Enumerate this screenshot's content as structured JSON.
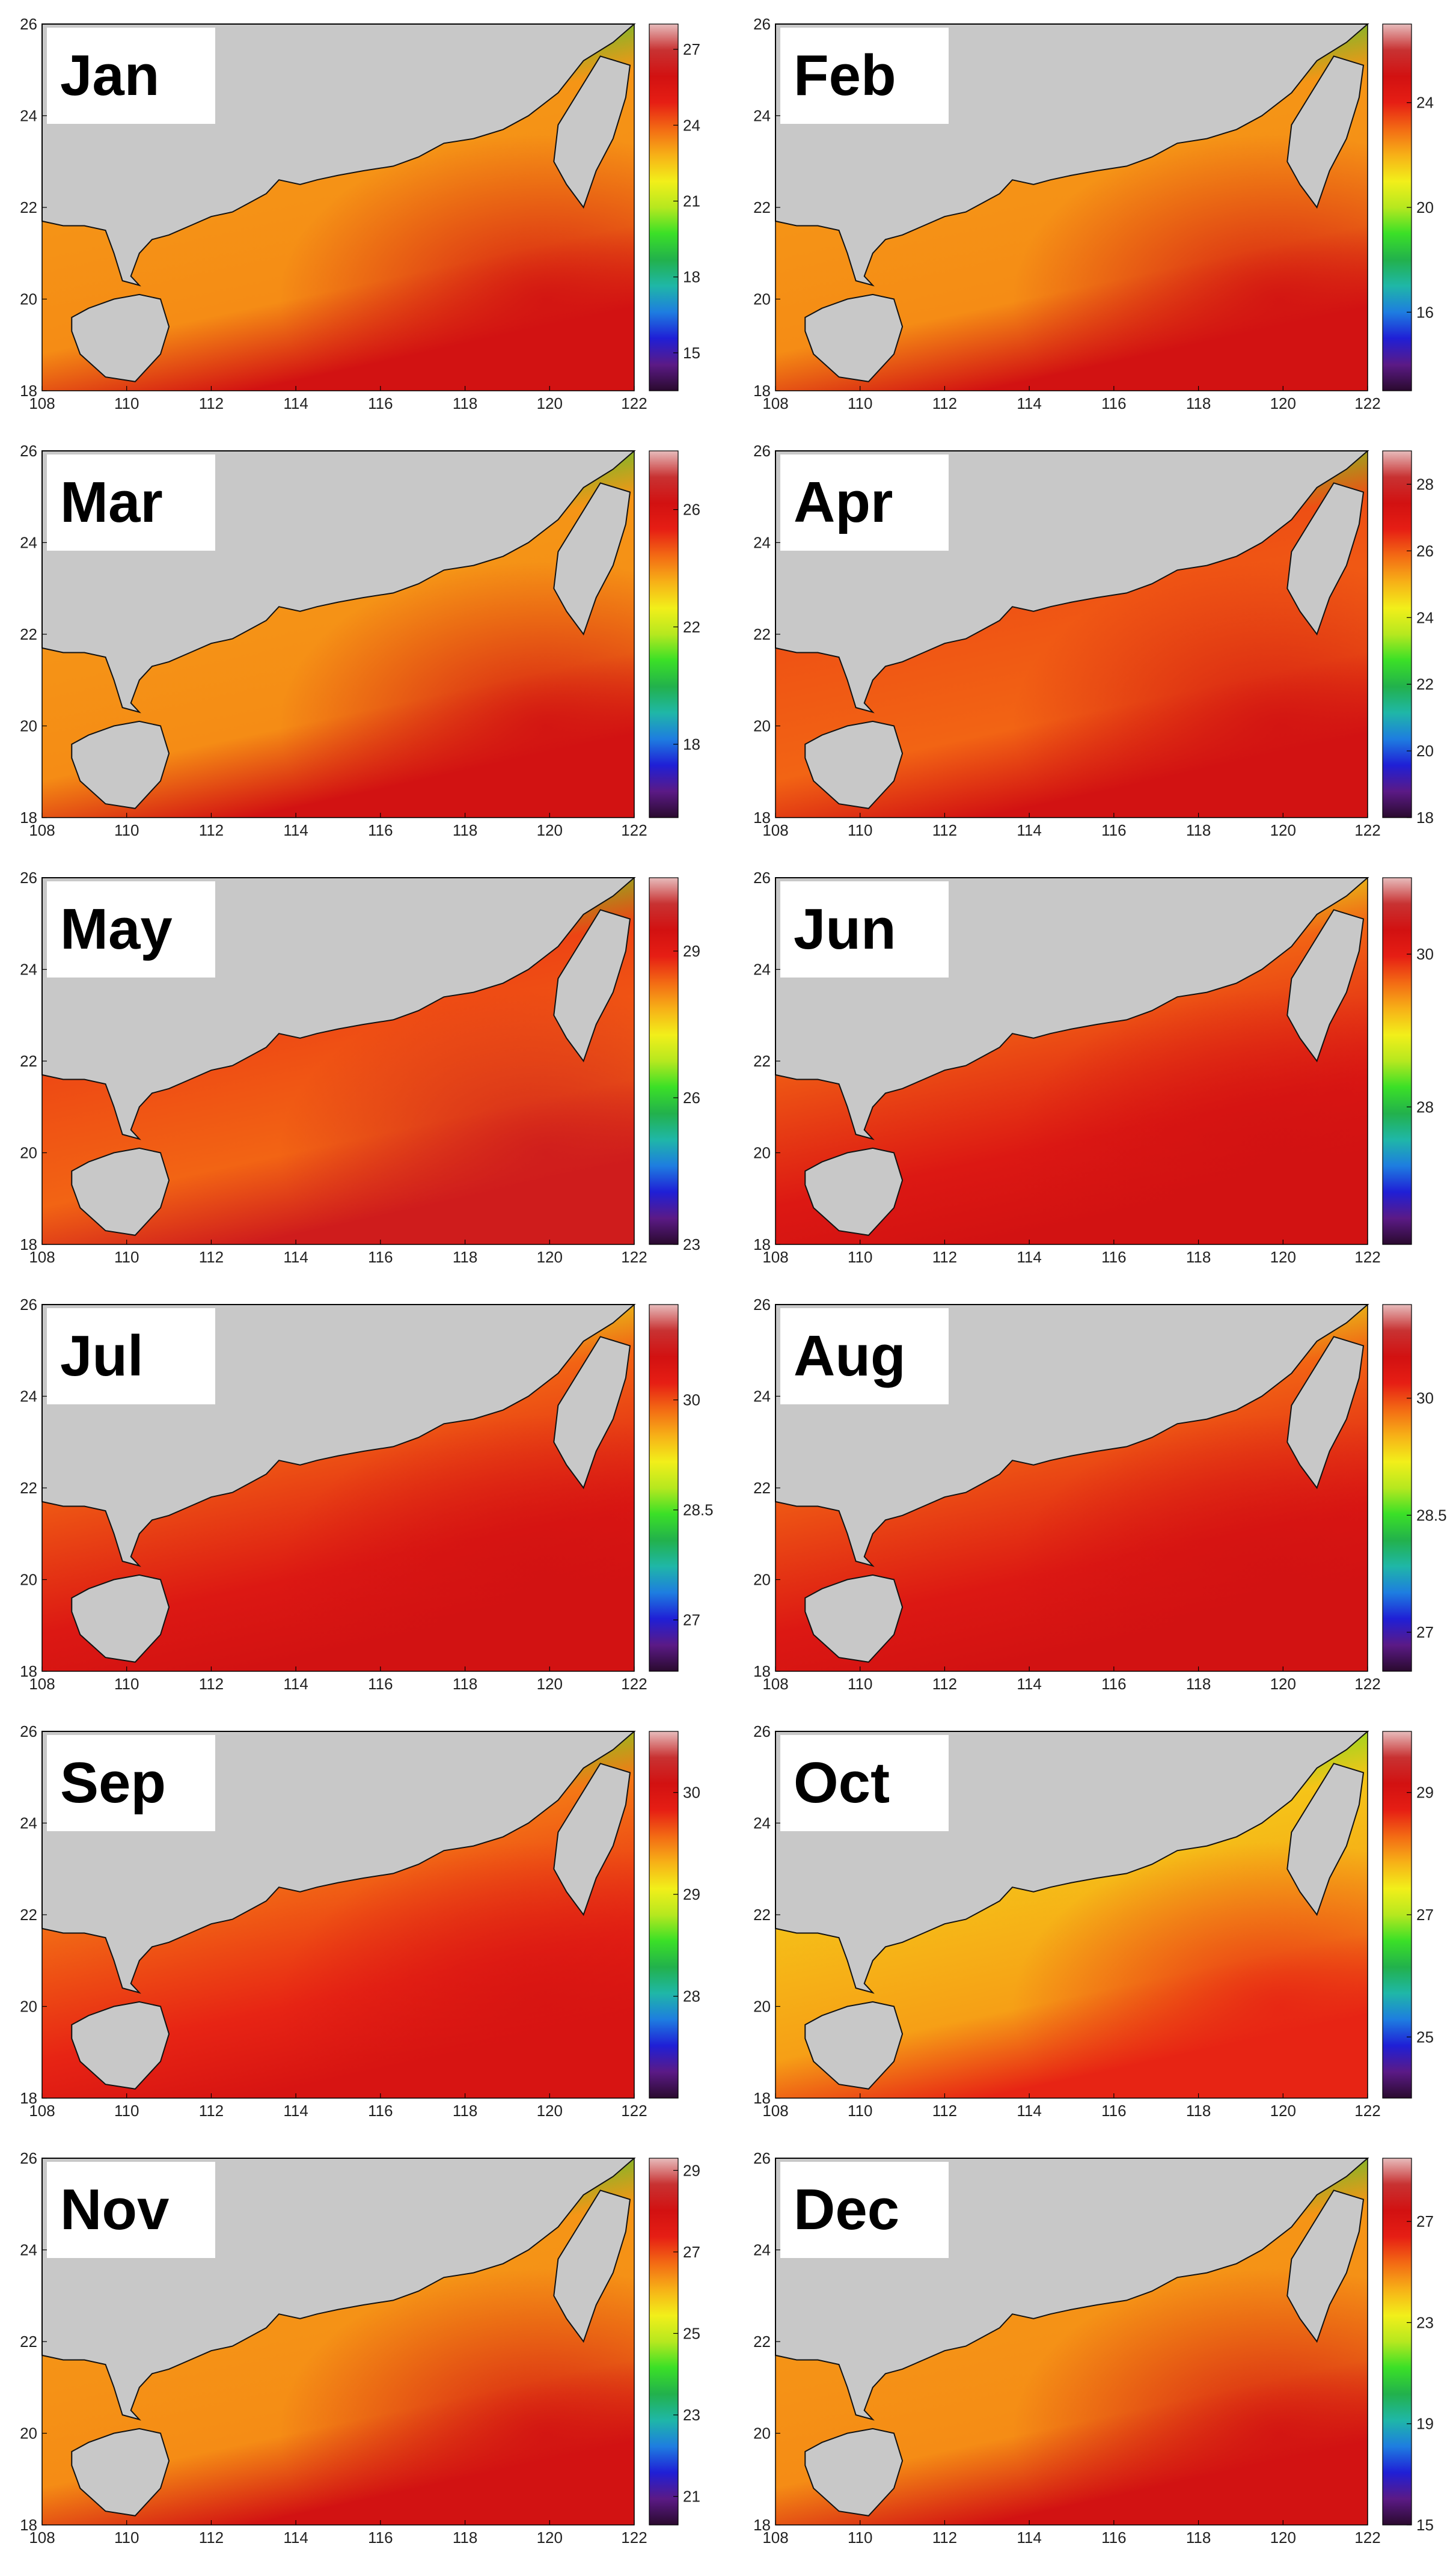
{
  "figure": {
    "x_ticks": [
      "108",
      "110",
      "112",
      "114",
      "116",
      "118",
      "120",
      "122"
    ],
    "y_ticks": [
      "18",
      "20",
      "22",
      "24",
      "26"
    ]
  },
  "colors": {
    "land": "#c8c8c8",
    "coast": "#111111",
    "colormap": [
      "#2a0a2e",
      "#5b1a86",
      "#1f1fd6",
      "#1e7de0",
      "#1fb7a7",
      "#22b14c",
      "#3be027",
      "#b6e81f",
      "#f2ef1a",
      "#f7b017",
      "#f36a14",
      "#e61e14",
      "#d21111",
      "#c83232",
      "#e7bcbc"
    ]
  },
  "panels": [
    {
      "label": "Jan",
      "colorbar_ticks": [
        "27",
        "24",
        "21",
        "18",
        "15"
      ],
      "cbar_range": [
        13.5,
        28
      ],
      "style": "winter"
    },
    {
      "label": "Feb",
      "colorbar_ticks": [
        "24",
        "20",
        "16"
      ],
      "cbar_range": [
        13,
        27
      ],
      "style": "winter"
    },
    {
      "label": "Mar",
      "colorbar_ticks": [
        "26",
        "22",
        "18"
      ],
      "cbar_range": [
        15.5,
        28
      ],
      "style": "winter"
    },
    {
      "label": "Apr",
      "colorbar_ticks": [
        "28",
        "26",
        "24",
        "22",
        "20",
        "18"
      ],
      "cbar_range": [
        18,
        29
      ],
      "style": "spring"
    },
    {
      "label": "May",
      "colorbar_ticks": [
        "29",
        "26",
        "23"
      ],
      "cbar_range": [
        23,
        30.5
      ],
      "style": "may"
    },
    {
      "label": "Jun",
      "colorbar_ticks": [
        "30",
        "28"
      ],
      "cbar_range": [
        26.2,
        31
      ],
      "style": "summer"
    },
    {
      "label": "Jul",
      "colorbar_ticks": [
        "30",
        "28.5",
        "27"
      ],
      "cbar_range": [
        26.3,
        31.3
      ],
      "style": "summer"
    },
    {
      "label": "Aug",
      "colorbar_ticks": [
        "30",
        "28.5",
        "27"
      ],
      "cbar_range": [
        26.5,
        31.2
      ],
      "style": "summer"
    },
    {
      "label": "Sep",
      "colorbar_ticks": [
        "30",
        "29",
        "28"
      ],
      "cbar_range": [
        27,
        30.6
      ],
      "style": "sep"
    },
    {
      "label": "Oct",
      "colorbar_ticks": [
        "29",
        "27",
        "25"
      ],
      "cbar_range": [
        24,
        30
      ],
      "style": "oct"
    },
    {
      "label": "Nov",
      "colorbar_ticks": [
        "29",
        "27",
        "25",
        "23",
        "21"
      ],
      "cbar_range": [
        20.3,
        29.3
      ],
      "style": "winter"
    },
    {
      "label": "Dec",
      "colorbar_ticks": [
        "27",
        "23",
        "19",
        "15"
      ],
      "cbar_range": [
        15,
        29.5
      ],
      "style": "winter"
    }
  ]
}
